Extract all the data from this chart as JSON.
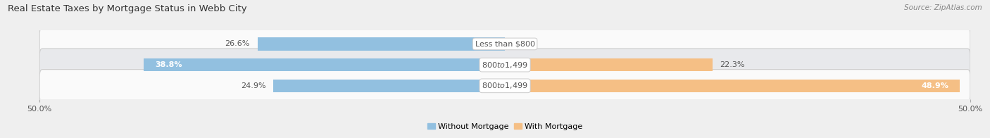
{
  "title": "Real Estate Taxes by Mortgage Status in Webb City",
  "source": "Source: ZipAtlas.com",
  "rows": [
    {
      "label": "Less than $800",
      "without_mortgage": 26.6,
      "with_mortgage": 0.0
    },
    {
      "label": "$800 to $1,499",
      "without_mortgage": 38.8,
      "with_mortgage": 22.3
    },
    {
      "label": "$800 to $1,499",
      "without_mortgage": 24.9,
      "with_mortgage": 48.9
    }
  ],
  "x_min": -50.0,
  "x_max": 50.0,
  "x_tick_labels_left": "50.0%",
  "x_tick_labels_right": "50.0%",
  "color_without": "#92C0E0",
  "color_with": "#F5BF85",
  "bar_height": 0.62,
  "bg_color": "#EFEFEF",
  "row_bg_colors": [
    "#FAFAFA",
    "#E8E9EC",
    "#FAFAFA"
  ],
  "legend_labels": [
    "Without Mortgage",
    "With Mortgage"
  ],
  "title_fontsize": 9.5,
  "label_fontsize": 8,
  "tick_fontsize": 8,
  "pct_fontsize": 8,
  "source_fontsize": 7.5,
  "label_text_color_dark": "#555555",
  "label_text_color_white": "#FFFFFF",
  "row_separator_color": "#CCCCCC"
}
